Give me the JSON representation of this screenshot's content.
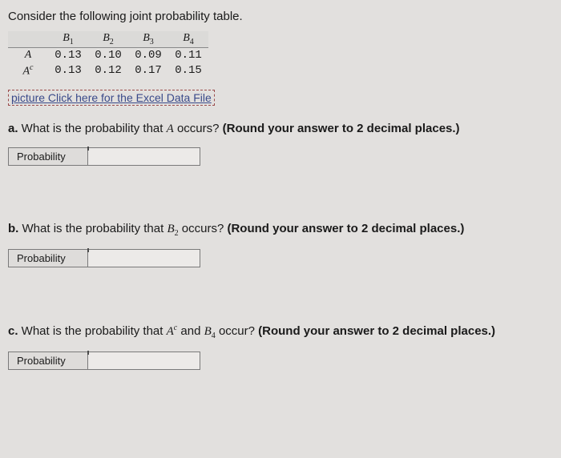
{
  "intro": "Consider the following joint probability table.",
  "table": {
    "col_headers": [
      "B",
      "B",
      "B",
      "B"
    ],
    "col_subs": [
      "1",
      "2",
      "3",
      "4"
    ],
    "rows": [
      {
        "label": "A",
        "sup": "",
        "cells": [
          "0.13",
          "0.10",
          "0.09",
          "0.11"
        ]
      },
      {
        "label": "A",
        "sup": "c",
        "cells": [
          "0.13",
          "0.12",
          "0.17",
          "0.15"
        ]
      }
    ]
  },
  "excel_link": "picture Click here for the Excel Data File",
  "questions": {
    "a": {
      "prefix": "a.",
      "text_before": " What is the probability that ",
      "var": "A",
      "text_after": " occurs? ",
      "hint": "(Round your answer to 2 decimal places.)",
      "label": "Probability"
    },
    "b": {
      "prefix": "b.",
      "text_before": " What is the probability that ",
      "var_base": "B",
      "var_sub": "2",
      "text_after": " occurs? ",
      "hint": "(Round your answer to 2 decimal places.)",
      "label": "Probability"
    },
    "c": {
      "prefix": "c.",
      "text_before": " What is the probability that ",
      "var1_base": "A",
      "var1_sup": "c",
      "mid": " and ",
      "var2_base": "B",
      "var2_sub": "4",
      "text_after": " occur? ",
      "hint": "(Round your answer to 2 decimal places.)",
      "label": "Probability"
    }
  }
}
